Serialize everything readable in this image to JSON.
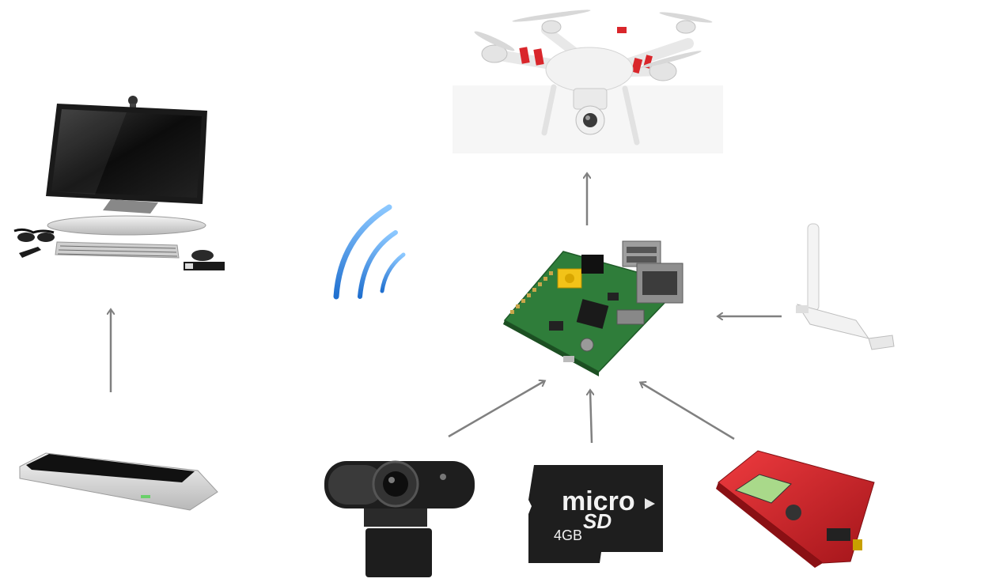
{
  "diagram": {
    "nodes": [
      {
        "id": "drone",
        "icon": "quadcopter-drone-icon",
        "printed_text": []
      },
      {
        "id": "desktop-computer",
        "icon": "desktop-computer-icon",
        "printed_text": []
      },
      {
        "id": "wireless-signal",
        "icon": "wifi-signal-icon",
        "printed_text": []
      },
      {
        "id": "raspberry-pi",
        "icon": "raspberry-pi-board-icon",
        "printed_text": []
      },
      {
        "id": "wifi-usb-adapter",
        "icon": "usb-wifi-adapter-icon",
        "printed_text": []
      },
      {
        "id": "leap-motion",
        "icon": "leap-motion-controller-icon",
        "printed_text": []
      },
      {
        "id": "webcam",
        "icon": "webcam-icon",
        "printed_text": []
      },
      {
        "id": "microsd-card",
        "icon": "microsd-card-icon",
        "printed_text": [
          "micro",
          "SD",
          "4GB"
        ]
      },
      {
        "id": "power-supply",
        "icon": "power-supply-icon",
        "printed_text": []
      }
    ],
    "edges": [
      {
        "from": "leap-motion",
        "to": "desktop-computer"
      },
      {
        "from": "raspberry-pi",
        "to": "drone"
      },
      {
        "from": "wifi-usb-adapter",
        "to": "raspberry-pi"
      },
      {
        "from": "webcam",
        "to": "raspberry-pi"
      },
      {
        "from": "microsd-card",
        "to": "raspberry-pi"
      },
      {
        "from": "power-supply",
        "to": "raspberry-pi"
      }
    ]
  },
  "sd_card": {
    "micro_text": "micro",
    "sd_text": "SD",
    "capacity": "4GB"
  },
  "colors": {
    "arrow": "#808080",
    "signal": "#3b8fe0",
    "pcb": "#2f7d3a",
    "drone_stripe": "#d9262b",
    "psu": "#cc2026"
  }
}
